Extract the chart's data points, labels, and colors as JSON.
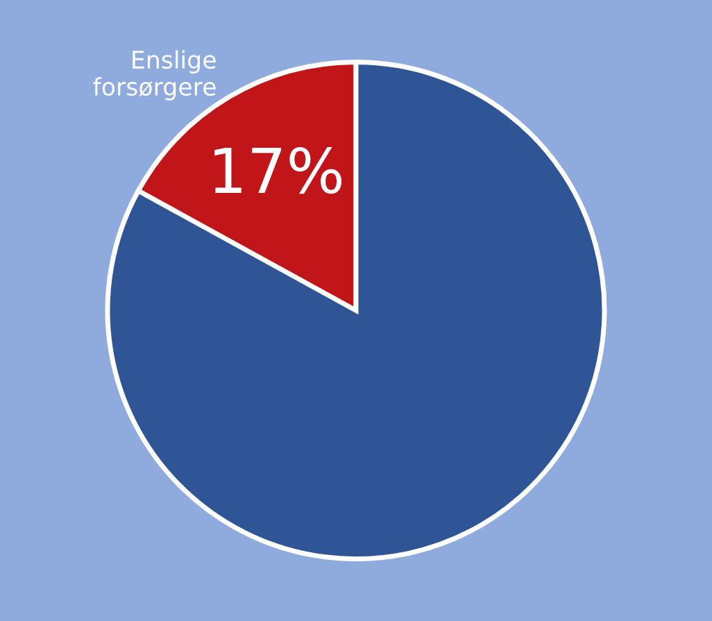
{
  "chart_data": {
    "type": "pie",
    "categories": [
      "Enslige forsørgere",
      null
    ],
    "values": [
      17,
      83
    ],
    "colors": [
      "#c0161a",
      "#2f5597"
    ],
    "value_labels": [
      "17%",
      null
    ]
  }
}
